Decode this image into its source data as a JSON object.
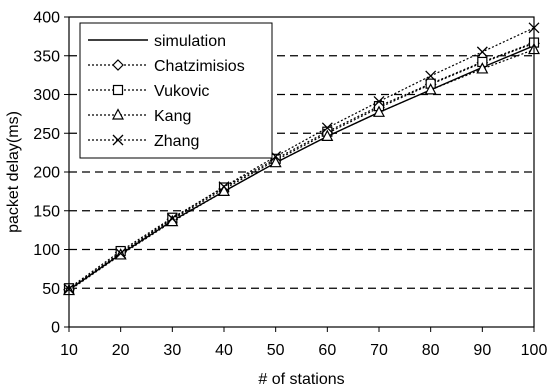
{
  "chart_data": {
    "type": "line",
    "xlabel": "# of stations",
    "ylabel": "packet delay(ms)",
    "x": [
      10,
      20,
      30,
      40,
      50,
      60,
      70,
      80,
      90,
      100
    ],
    "xlim": [
      10,
      100
    ],
    "ylim": [
      0,
      400
    ],
    "xticks": [
      "10",
      "20",
      "30",
      "40",
      "50",
      "60",
      "70",
      "80",
      "90",
      "100"
    ],
    "yticks": [
      "0",
      "50",
      "100",
      "150",
      "200",
      "250",
      "300",
      "350",
      "400"
    ],
    "grid": "horizontal dashed",
    "legend_position": "top-left",
    "series": [
      {
        "name": "simulation",
        "marker": "none",
        "dash": "solid",
        "values": [
          48,
          94,
          137,
          175,
          212,
          246,
          277,
          306,
          335,
          363
        ]
      },
      {
        "name": "Chatzimisios",
        "marker": "diamond",
        "dash": "dotted",
        "values": [
          48,
          96,
          139,
          178,
          215,
          250,
          283,
          313,
          341,
          366
        ]
      },
      {
        "name": "Vukovic",
        "marker": "square",
        "dash": "dotted",
        "values": [
          50,
          98,
          141,
          180,
          217,
          252,
          285,
          314,
          342,
          367
        ]
      },
      {
        "name": "Kang",
        "marker": "triangle",
        "dash": "dotted",
        "values": [
          47,
          93,
          136,
          175,
          212,
          246,
          277,
          306,
          333,
          358
        ]
      },
      {
        "name": "Zhang",
        "marker": "x",
        "dash": "dotted",
        "values": [
          49,
          95,
          140,
          181,
          220,
          257,
          291,
          324,
          355,
          386
        ]
      }
    ]
  }
}
